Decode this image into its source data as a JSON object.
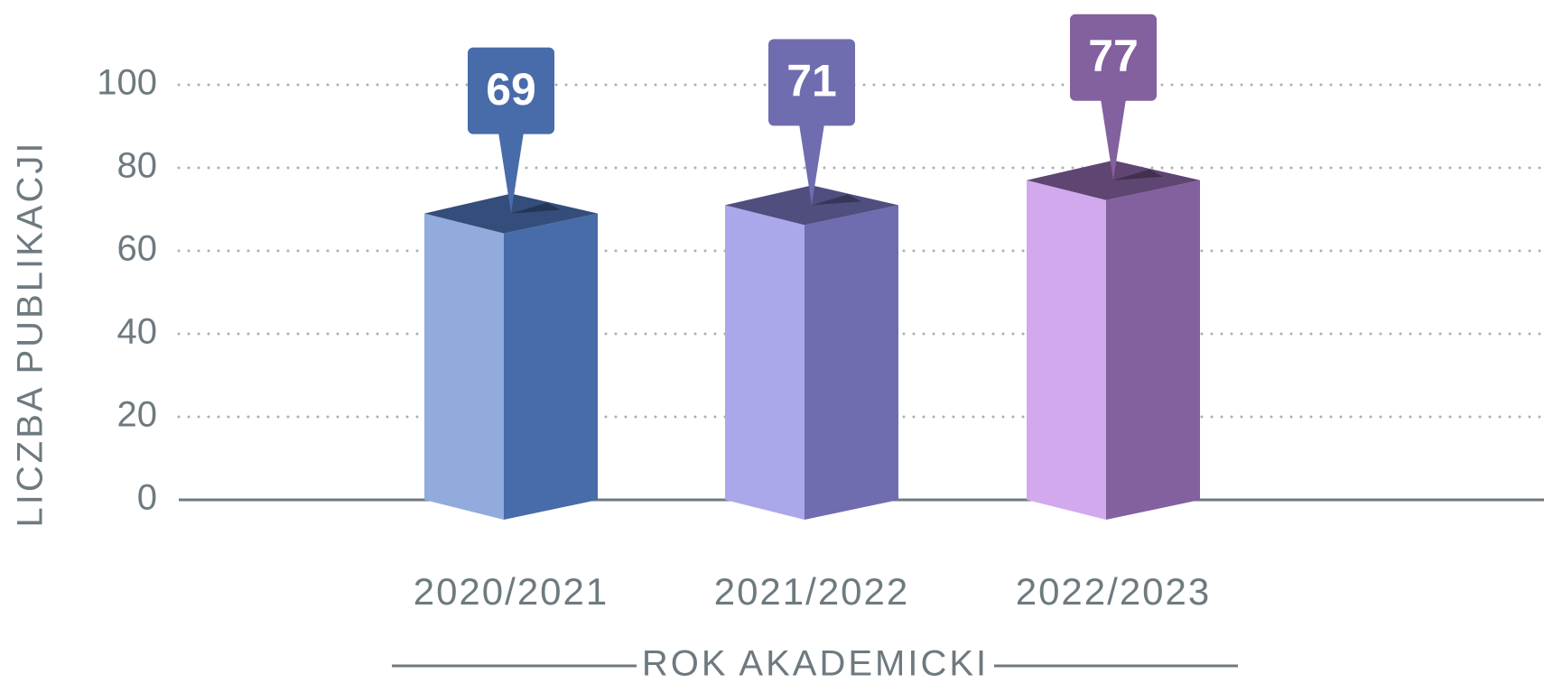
{
  "chart_data": {
    "type": "bar3d",
    "x_label": "ROK AKADEMICKI",
    "y_label": "LICZBA PUBLIKACJI",
    "categories": [
      "2020/2021",
      "2021/2022",
      "2022/2023"
    ],
    "values": [
      69,
      71,
      77
    ],
    "colors": [
      "#486ba9",
      "#6f6cb0",
      "#83609e"
    ],
    "highlight_colors": [
      "#91abdd",
      "#aaa8ea",
      "#d2a9ec"
    ],
    "ylim": [
      0,
      100
    ],
    "yticks": [
      0,
      20,
      40,
      60,
      80,
      100
    ],
    "grid": true
  }
}
